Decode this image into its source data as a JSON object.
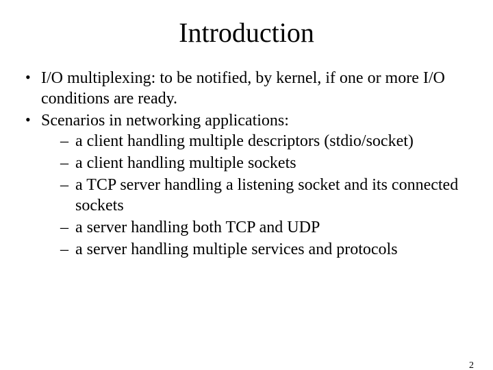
{
  "slide": {
    "title": "Introduction",
    "bullets": [
      {
        "text": "I/O multiplexing: to be notified, by kernel, if one or more I/O conditions are ready."
      },
      {
        "text": "Scenarios in networking applications:",
        "sub": [
          "a client handling multiple descriptors (stdio/socket)",
          "a client handling multiple sockets",
          "a TCP server handling a listening socket and its connected sockets",
          "a server handling both TCP and UDP",
          "a server handling multiple services and protocols"
        ]
      }
    ],
    "page_number": "2"
  },
  "style": {
    "background_color": "#ffffff",
    "text_color": "#000000",
    "title_fontsize": 40,
    "body_fontsize": 24,
    "pagenum_fontsize": 14,
    "font_family": "Times New Roman"
  }
}
